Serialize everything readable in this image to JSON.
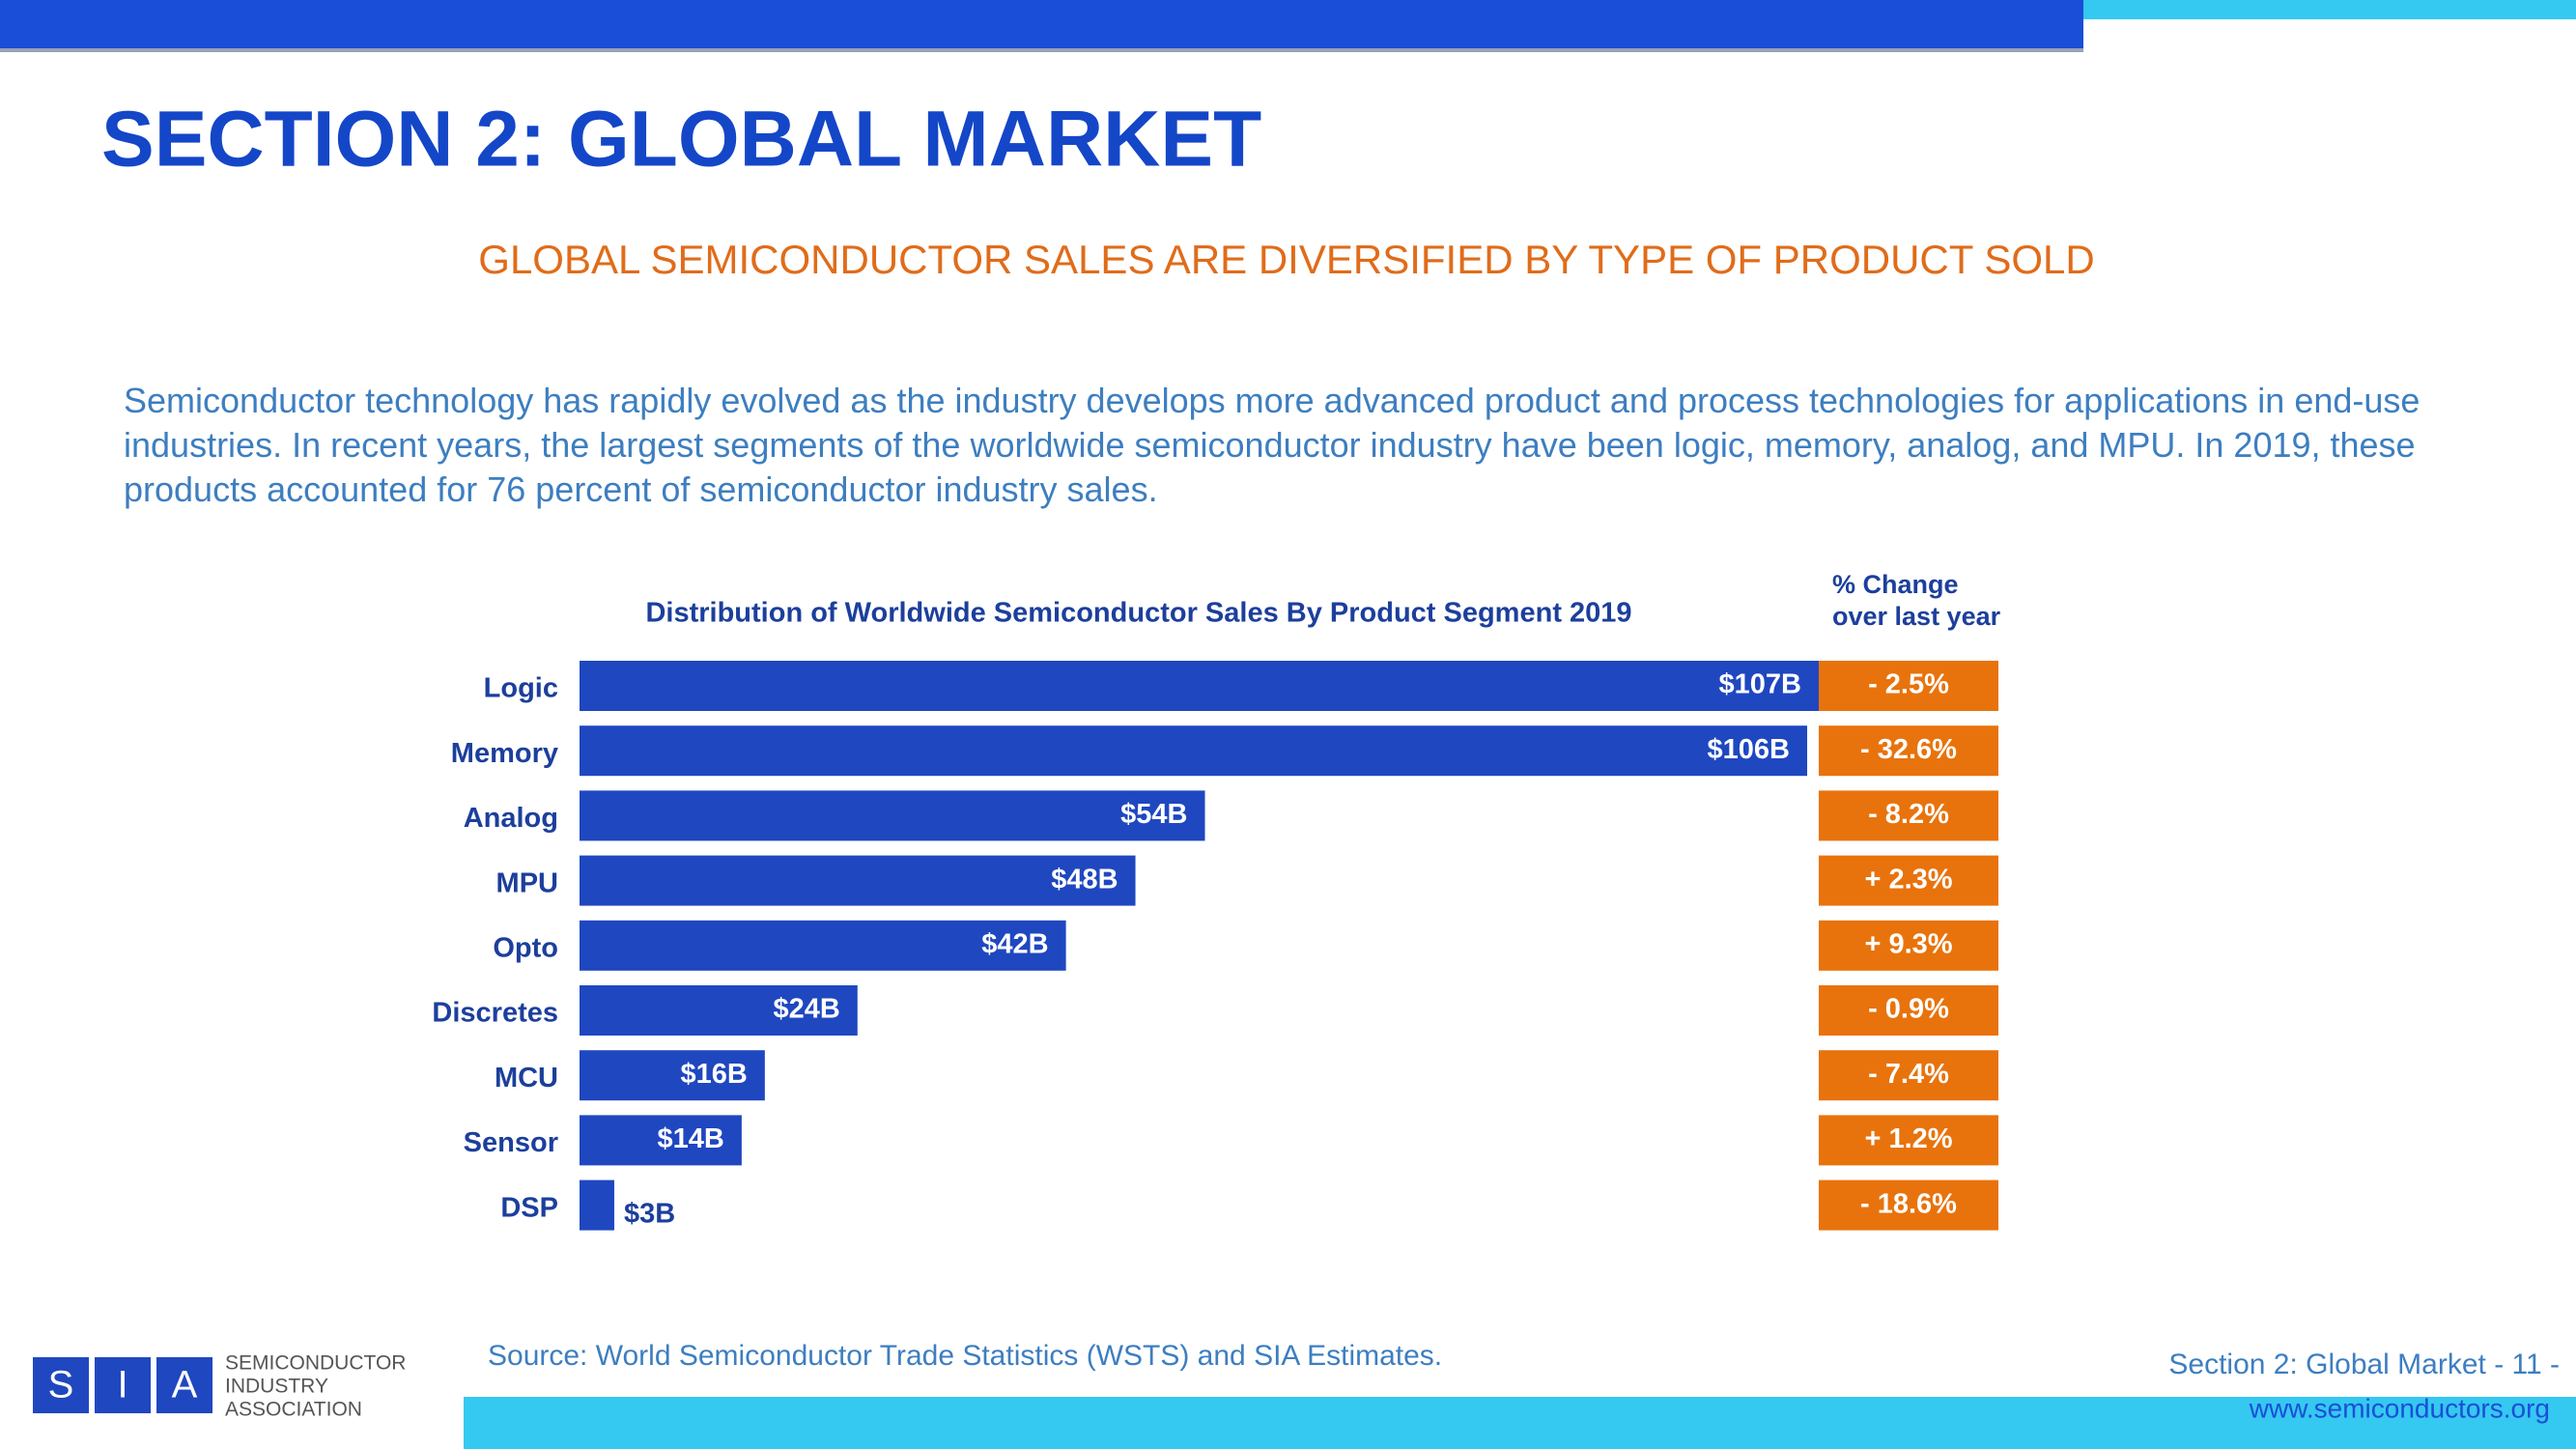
{
  "slide": {
    "title": "SECTION 2: GLOBAL MARKET",
    "subtitle": "GLOBAL SEMICONDUCTOR SALES ARE DIVERSIFIED BY TYPE OF PRODUCT SOLD",
    "body": "Semiconductor technology has rapidly evolved as the industry develops more advanced product and process technologies for applications in end-use industries. In recent years, the largest segments of the worldwide semiconductor industry have been logic, memory, analog, and MPU. In 2019, these products accounted for 76 percent of semiconductor industry sales.",
    "source": "Source: World Semiconductor Trade Statistics (WSTS) and SIA Estimates.",
    "page": "Section 2: Global Market - 11 -",
    "url": "www.semiconductors.org",
    "logo": {
      "letters": [
        "S",
        "I",
        "A"
      ],
      "name": [
        "SEMICONDUCTOR",
        "INDUSTRY",
        "ASSOCIATION"
      ]
    }
  },
  "chart_data": {
    "type": "bar",
    "orientation": "horizontal",
    "title": "Distribution of Worldwide Semiconductor Sales By Product Segment 2019",
    "categories": [
      "Logic",
      "Memory",
      "Analog",
      "MPU",
      "Opto",
      "Discretes",
      "MCU",
      "Sensor",
      "DSP"
    ],
    "values": [
      107,
      106,
      54,
      48,
      42,
      24,
      16,
      14,
      3
    ],
    "value_labels": [
      "$107B",
      "$106B",
      "$54B",
      "$48B",
      "$42B",
      "$24B",
      "$16B",
      "$14B",
      "$3B"
    ],
    "color": "#1f47c0",
    "change": {
      "title": [
        "% Change",
        "over last year"
      ],
      "color": "#e8730c",
      "values": [
        -2.5,
        -32.6,
        -8.2,
        2.3,
        9.3,
        -0.9,
        -7.4,
        1.2,
        -18.6
      ],
      "value_labels": [
        "- 2.5%",
        "- 32.6%",
        "- 8.2%",
        "+ 2.3%",
        "+ 9.3%",
        "- 0.9%",
        "- 7.4%",
        "+ 1.2%",
        "- 18.6%"
      ]
    }
  }
}
